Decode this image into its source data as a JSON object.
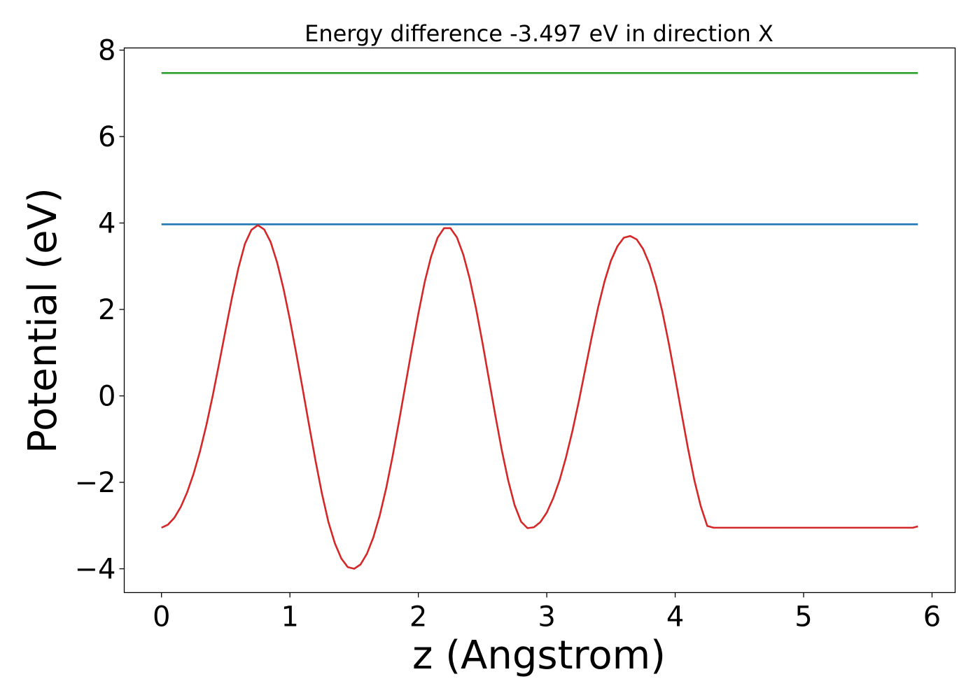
{
  "chart_data": {
    "type": "line",
    "title": "Energy difference -3.497 eV in direction X",
    "xlabel": "z (Angstrom)",
    "ylabel": "Potential (eV)",
    "xlim": [
      -0.29,
      6.18
    ],
    "ylim": [
      -4.55,
      8.05
    ],
    "xticks": [
      0,
      1,
      2,
      3,
      4,
      5,
      6
    ],
    "yticks": [
      -4,
      -2,
      0,
      2,
      4,
      6,
      8
    ],
    "xtick_labels": [
      "0",
      "1",
      "2",
      "3",
      "4",
      "5",
      "6"
    ],
    "ytick_labels": [
      "−4",
      "−2",
      "0",
      "2",
      "4",
      "6",
      "8"
    ],
    "grid": false,
    "legend": "none",
    "series": [
      {
        "color": "#2ca02c",
        "x": [
          0.0,
          5.89
        ],
        "y": [
          7.47,
          7.47
        ]
      },
      {
        "color": "#1f77b4",
        "x": [
          0.0,
          5.89
        ],
        "y": [
          3.97,
          3.97
        ]
      },
      {
        "color": "#d62728",
        "x": [
          0.0,
          0.05,
          0.1,
          0.15,
          0.2,
          0.25,
          0.3,
          0.35,
          0.4,
          0.45,
          0.5,
          0.55,
          0.6,
          0.65,
          0.7,
          0.75,
          0.8,
          0.85,
          0.9,
          0.95,
          1.0,
          1.05,
          1.1,
          1.15,
          1.2,
          1.25,
          1.3,
          1.35,
          1.4,
          1.45,
          1.5,
          1.55,
          1.6,
          1.65,
          1.7,
          1.75,
          1.8,
          1.85,
          1.9,
          1.95,
          2.0,
          2.05,
          2.1,
          2.15,
          2.2,
          2.25,
          2.3,
          2.35,
          2.4,
          2.45,
          2.5,
          2.55,
          2.6,
          2.65,
          2.7,
          2.75,
          2.8,
          2.85,
          2.9,
          2.95,
          3.0,
          3.05,
          3.1,
          3.15,
          3.2,
          3.25,
          3.3,
          3.35,
          3.4,
          3.45,
          3.5,
          3.55,
          3.6,
          3.65,
          3.7,
          3.75,
          3.8,
          3.85,
          3.9,
          3.95,
          4.0,
          4.05,
          4.1,
          4.15,
          4.2,
          4.25,
          4.3,
          4.35,
          4.4,
          4.45,
          4.5,
          4.55,
          4.6,
          4.65,
          4.7,
          4.75,
          4.8,
          4.85,
          4.9,
          4.95,
          5.0,
          5.05,
          5.1,
          5.15,
          5.2,
          5.25,
          5.3,
          5.35,
          5.4,
          5.45,
          5.5,
          5.55,
          5.6,
          5.65,
          5.7,
          5.75,
          5.8,
          5.85,
          5.89
        ],
        "y": [
          -3.05,
          -2.98,
          -2.82,
          -2.57,
          -2.23,
          -1.8,
          -1.28,
          -0.67,
          0.02,
          0.77,
          1.54,
          2.29,
          2.97,
          3.52,
          3.84,
          3.95,
          3.85,
          3.56,
          3.09,
          2.48,
          1.76,
          0.97,
          0.15,
          -0.69,
          -1.51,
          -2.27,
          -2.92,
          -3.41,
          -3.76,
          -3.96,
          -4.0,
          -3.9,
          -3.65,
          -3.27,
          -2.76,
          -2.13,
          -1.39,
          -0.58,
          0.26,
          1.1,
          1.9,
          2.64,
          3.23,
          3.66,
          3.88,
          3.88,
          3.67,
          3.27,
          2.71,
          2.01,
          1.22,
          0.38,
          -0.46,
          -1.26,
          -1.96,
          -2.53,
          -2.91,
          -3.06,
          -3.04,
          -2.92,
          -2.7,
          -2.37,
          -1.95,
          -1.42,
          -0.81,
          -0.12,
          0.62,
          1.36,
          2.05,
          2.65,
          3.13,
          3.46,
          3.66,
          3.7,
          3.62,
          3.4,
          3.05,
          2.56,
          1.95,
          1.22,
          0.42,
          -0.41,
          -1.22,
          -1.96,
          -2.56,
          -3.01,
          -3.05,
          -3.05,
          -3.05,
          -3.05,
          -3.05,
          -3.05,
          -3.05,
          -3.05,
          -3.05,
          -3.05,
          -3.05,
          -3.05,
          -3.05,
          -3.05,
          -3.05,
          -3.05,
          -3.05,
          -3.05,
          -3.05,
          -3.05,
          -3.05,
          -3.05,
          -3.05,
          -3.05,
          -3.05,
          -3.05,
          -3.05,
          -3.05,
          -3.05,
          -3.05,
          -3.05,
          -3.05,
          -3.02
        ]
      }
    ]
  }
}
